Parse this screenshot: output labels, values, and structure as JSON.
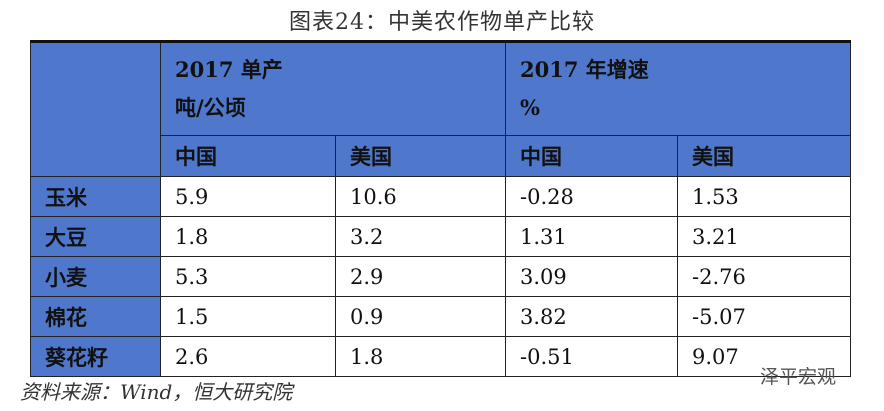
{
  "title": "图表24：中美农作物单产比较",
  "table": {
    "group_headers": [
      {
        "line1": "2017 单产",
        "line2": "吨/公顷"
      },
      {
        "line1": "2017 年增速",
        "line2": "%"
      }
    ],
    "sub_headers": [
      "中国",
      "美国",
      "中国",
      "美国"
    ],
    "rows": [
      [
        "玉米",
        "5.9",
        "10.6",
        "-0.28",
        "1.53"
      ],
      [
        "大豆",
        "1.8",
        "3.2",
        "1.31",
        "3.21"
      ],
      [
        "小麦",
        "5.3",
        "2.9",
        "3.09",
        "-2.76"
      ],
      [
        "棉花",
        "1.5",
        "0.9",
        "3.82",
        "-5.07"
      ],
      [
        "葵花籽",
        "2.6",
        "1.8",
        "-0.51",
        "9.07"
      ]
    ]
  },
  "source": "资料来源：Wind，恒大研究院",
  "watermark": "泽平宏观"
}
